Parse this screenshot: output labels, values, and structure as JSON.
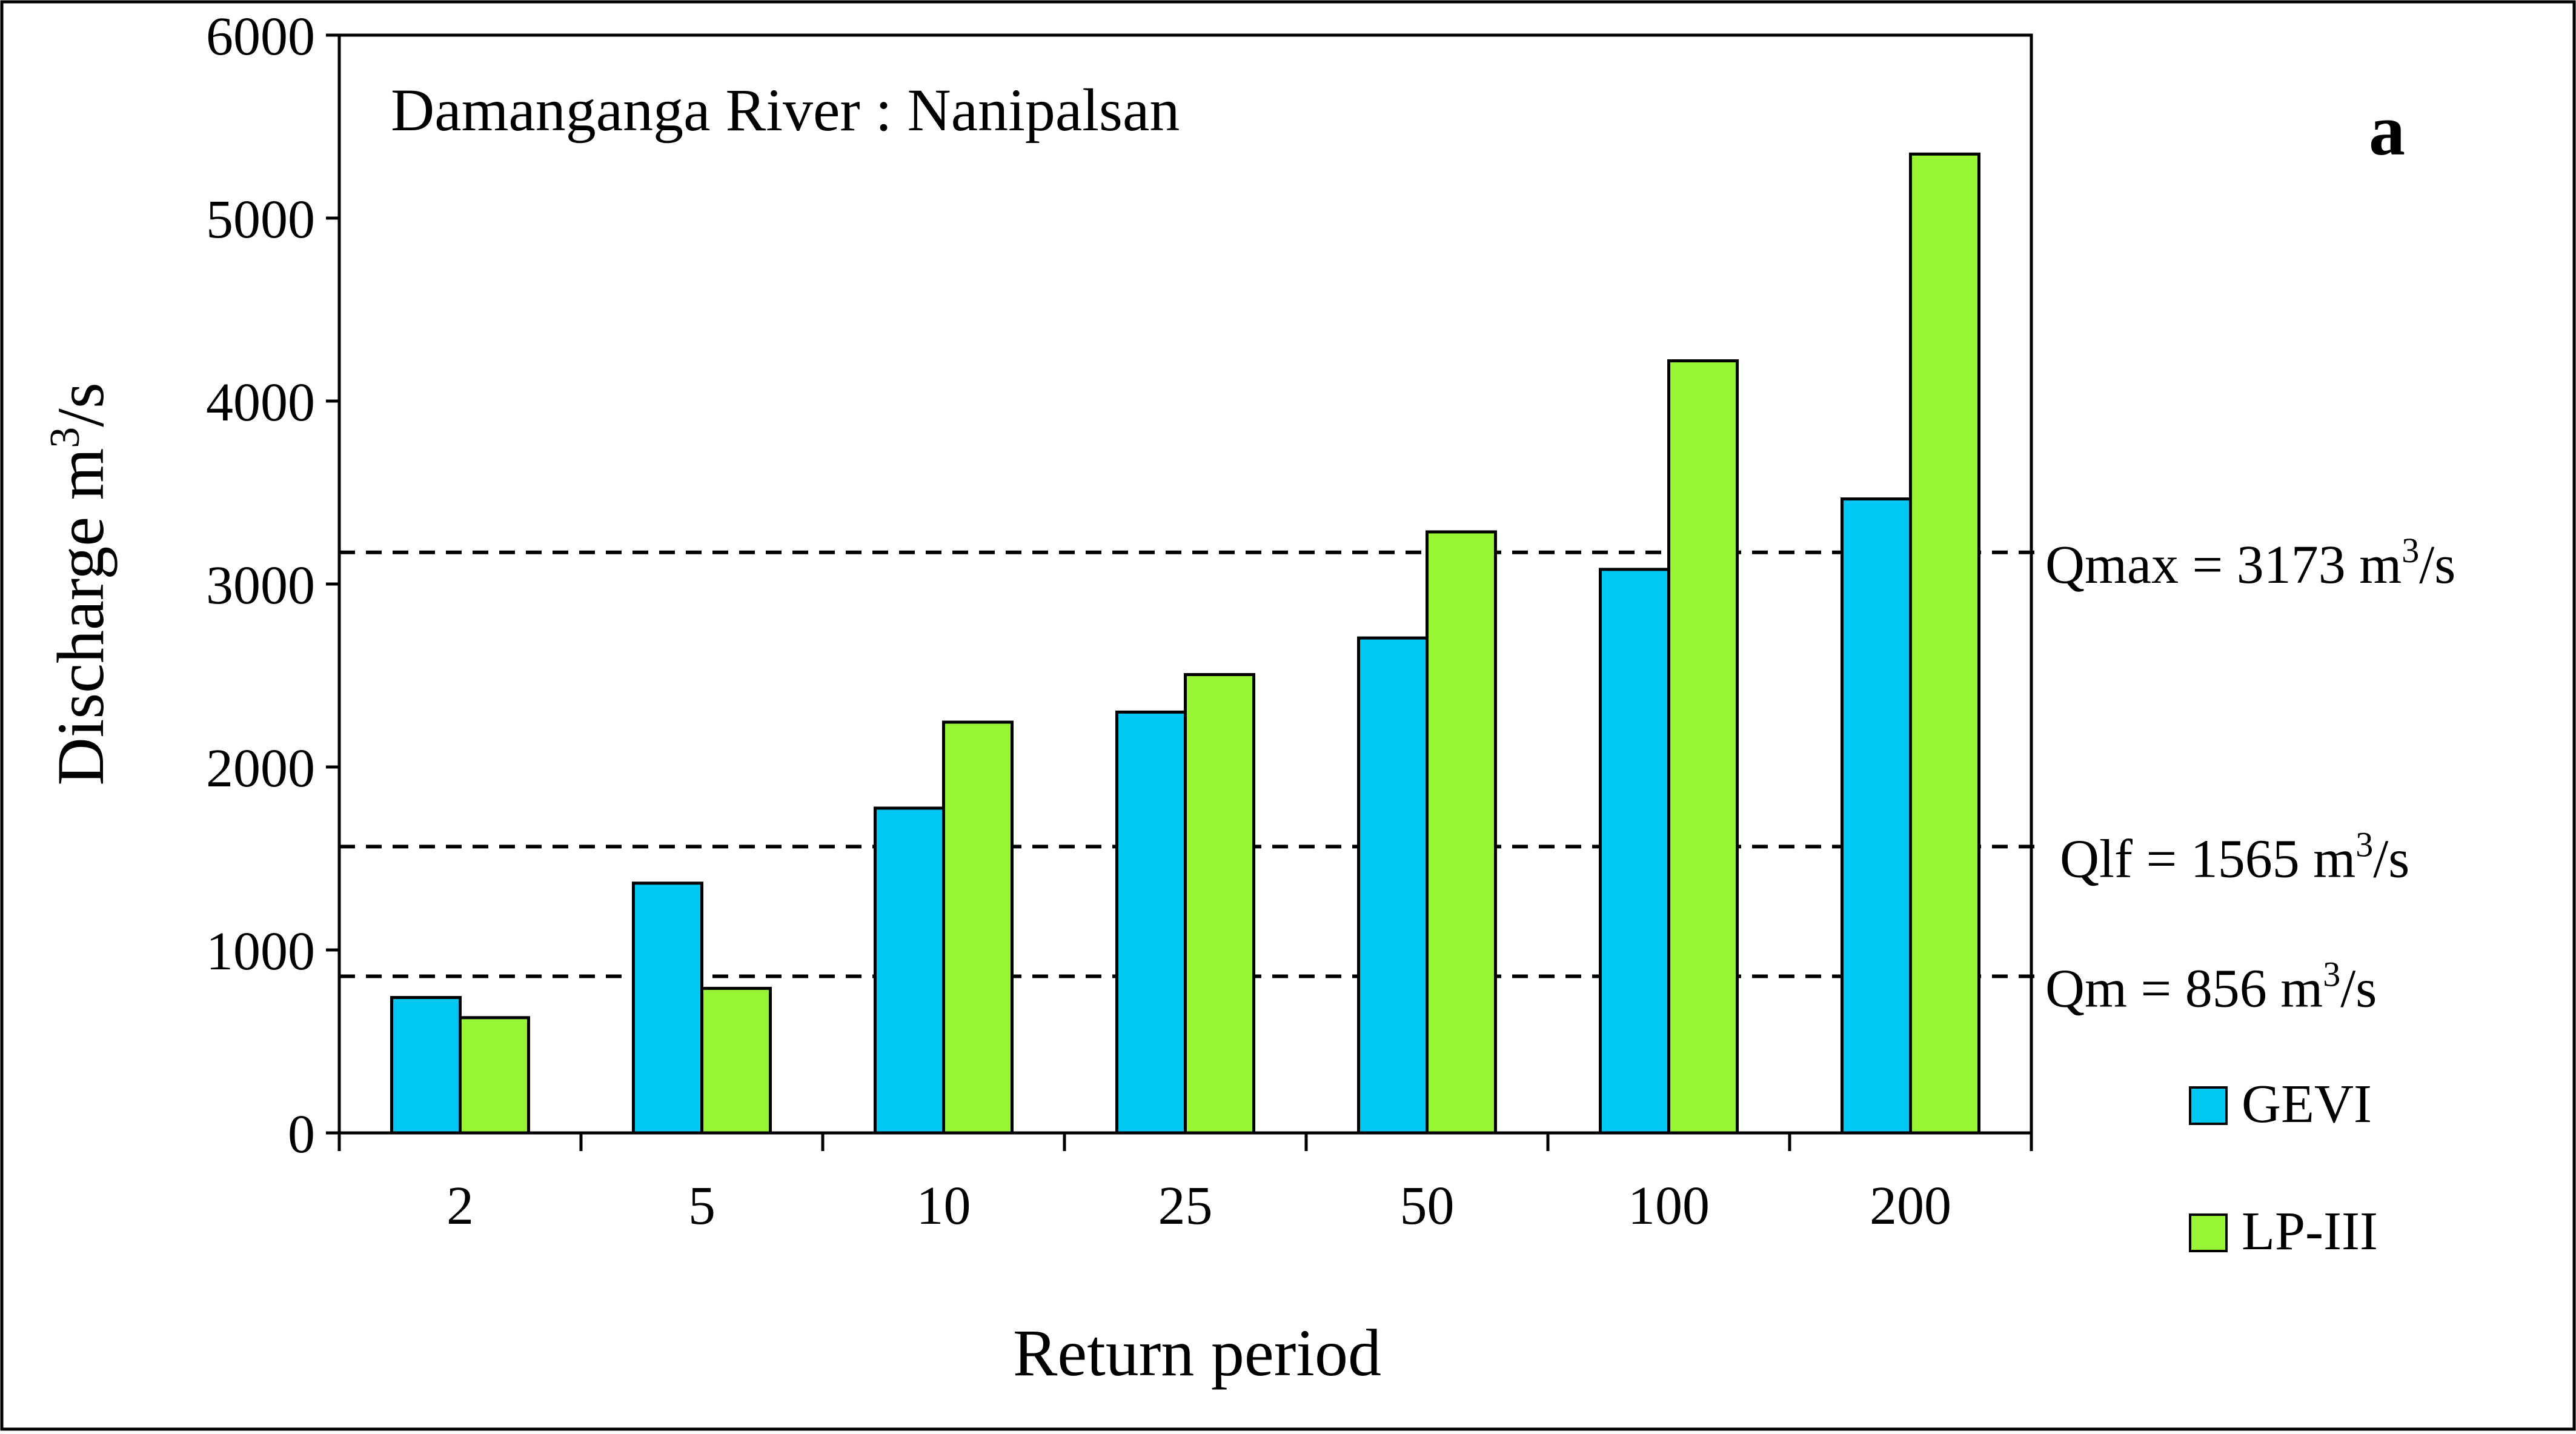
{
  "panel_label": "a",
  "chart_data": {
    "type": "bar",
    "title": "Damanganga River : Nanipalsan",
    "xlabel": "Return period",
    "ylabel": "Discharge m³/s",
    "categories": [
      "2",
      "5",
      "10",
      "25",
      "50",
      "100",
      "200"
    ],
    "series": [
      {
        "name": "GEVI",
        "color": "#00C8F5",
        "values": [
          740,
          1365,
          1775,
          2300,
          2705,
          3080,
          3465
        ]
      },
      {
        "name": "LP-III",
        "color": "#97F534",
        "values": [
          630,
          790,
          2245,
          2505,
          3285,
          4220,
          5350
        ]
      }
    ],
    "ylim": [
      0,
      6000
    ],
    "yticks": [
      0,
      1000,
      2000,
      3000,
      4000,
      5000,
      6000
    ],
    "grid": false,
    "legend_placement": "bottom-right",
    "reference_lines": [
      {
        "value": 3173,
        "label": "Qmax = 3173 m³/s"
      },
      {
        "value": 1565,
        "label": "Qlf = 1565 m³/s"
      },
      {
        "value": 856,
        "label": "Qm = 856 m³/s"
      }
    ]
  }
}
